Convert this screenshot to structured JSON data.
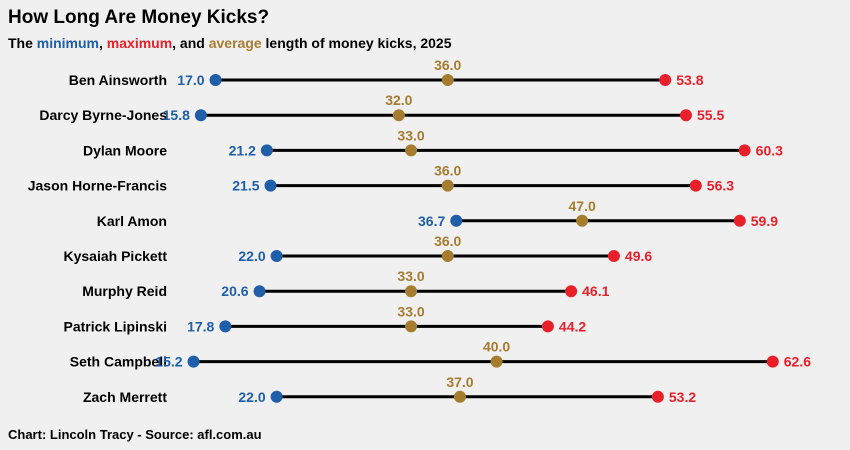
{
  "title": "How Long Are Money Kicks?",
  "subtitle": {
    "prefix": "The",
    "min_word": "minimum",
    "comma1": ",",
    "max_word": "maximum",
    "and_text": ", and",
    "avg_word": "average",
    "suffix": "length of money kicks, 2025"
  },
  "footer": "Chart: Lincoln Tracy - Source: afl.com.au",
  "colors": {
    "min": "#1f5ea8",
    "max": "#e8202a",
    "avg": "#a67c2e",
    "line": "#000000"
  },
  "chart_data": {
    "type": "dumbbell",
    "title": "How Long Are Money Kicks?",
    "subtitle": "The minimum, maximum, and average length of money kicks, 2025",
    "series_names": [
      "minimum",
      "average",
      "maximum"
    ],
    "players": [
      {
        "name": "Ben Ainsworth",
        "min": 17.0,
        "avg": 36.0,
        "max": 53.8
      },
      {
        "name": "Darcy Byrne-Jones",
        "min": 15.8,
        "avg": 32.0,
        "max": 55.5
      },
      {
        "name": "Dylan Moore",
        "min": 21.2,
        "avg": 33.0,
        "max": 60.3
      },
      {
        "name": "Jason Horne-Francis",
        "min": 21.5,
        "avg": 36.0,
        "max": 56.3
      },
      {
        "name": "Karl Amon",
        "min": 36.7,
        "avg": 47.0,
        "max": 59.9
      },
      {
        "name": "Kysaiah Pickett",
        "min": 22.0,
        "avg": 36.0,
        "max": 49.6
      },
      {
        "name": "Murphy Reid",
        "min": 20.6,
        "avg": 33.0,
        "max": 46.1
      },
      {
        "name": "Patrick Lipinski",
        "min": 17.8,
        "avg": 33.0,
        "max": 44.2
      },
      {
        "name": "Seth Campbell",
        "min": 15.2,
        "avg": 40.0,
        "max": 62.6
      },
      {
        "name": "Zach Merrett",
        "min": 22.0,
        "avg": 37.0,
        "max": 53.2
      }
    ]
  }
}
